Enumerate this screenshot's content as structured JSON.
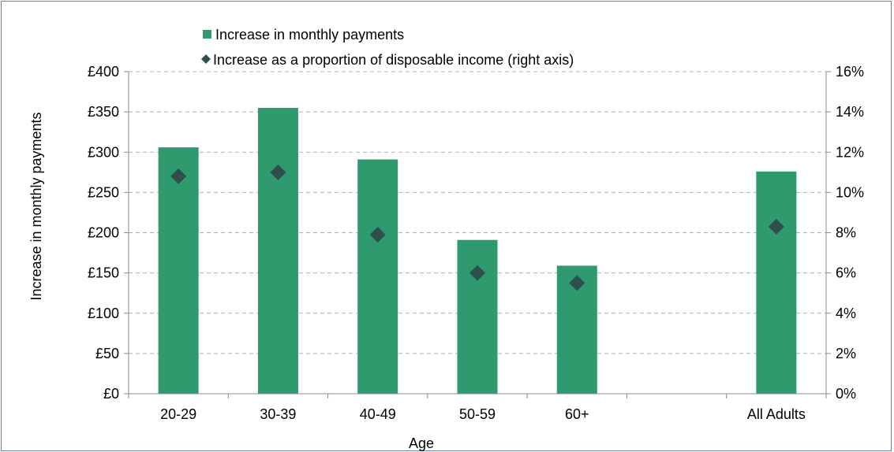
{
  "chart_data": {
    "type": "bar",
    "categories": [
      "20-29",
      "30-39",
      "40-49",
      "50-59",
      "60+",
      "",
      "All Adults"
    ],
    "series": [
      {
        "name": "Increase in monthly payments",
        "type": "bar",
        "axis": "left",
        "color": "#2e9a6e",
        "values": [
          306,
          355,
          291,
          191,
          159,
          null,
          276
        ]
      },
      {
        "name": "Increase as a proportion of disposable income (right axis)",
        "type": "scatter",
        "marker": "diamond",
        "axis": "right",
        "color": "#2f4f4f",
        "values": [
          10.8,
          11.0,
          7.9,
          6.0,
          5.5,
          null,
          8.3
        ]
      }
    ],
    "xlabel": "Age",
    "ylabel": "Increase in monthly payments",
    "ylim": [
      0,
      400
    ],
    "y2lim": [
      0,
      16
    ],
    "yticks": [
      "£0",
      "£50",
      "£100",
      "£150",
      "£200",
      "£250",
      "£300",
      "£350",
      "£400"
    ],
    "y2ticks": [
      "0%",
      "2%",
      "4%",
      "6%",
      "8%",
      "10%",
      "12%",
      "14%",
      "16%"
    ],
    "grid": "horizontal dashed",
    "legend_position": "top"
  }
}
